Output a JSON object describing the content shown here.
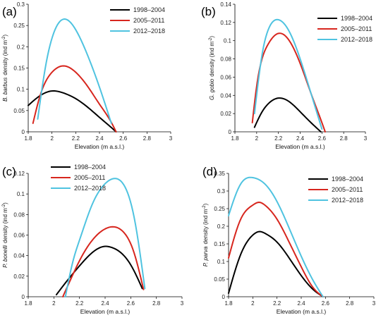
{
  "chart_data": [
    {
      "type": "line",
      "panel_label": "(a)",
      "ylabel_species": "B. barbus",
      "ylabel_rest": "density (ind m",
      "ylabel_sup": "-2",
      "ylabel_close": ")",
      "xlabel": "Elevation (m a.s.l.)",
      "xlim": [
        1.8,
        3
      ],
      "ylim": [
        0,
        0.3
      ],
      "xticks": [
        "1.8",
        "2",
        "2.2",
        "2.4",
        "2.6",
        "2.8",
        "3"
      ],
      "yticks": [
        "0",
        "0.05",
        "0.1",
        "0.15",
        "0.2",
        "0.25",
        "0.3"
      ],
      "legend_position": "top-right",
      "series": [
        {
          "name": "1998–2004",
          "color": "#000000",
          "x": [
            1.8,
            1.9,
            2.0,
            2.1,
            2.2,
            2.3,
            2.4,
            2.5,
            2.54
          ],
          "y": [
            0.062,
            0.085,
            0.096,
            0.091,
            0.078,
            0.058,
            0.034,
            0.01,
            0.0
          ]
        },
        {
          "name": "2005–2011",
          "color": "#d7261e",
          "x": [
            1.84,
            1.9,
            2.0,
            2.1,
            2.2,
            2.3,
            2.4,
            2.5,
            2.54
          ],
          "y": [
            0.02,
            0.085,
            0.14,
            0.155,
            0.14,
            0.107,
            0.065,
            0.022,
            0.0
          ]
        },
        {
          "name": "2012–2018",
          "color": "#4fc3e0",
          "x": [
            1.88,
            1.95,
            2.0,
            2.1,
            2.2,
            2.3,
            2.4,
            2.5
          ],
          "y": [
            0.03,
            0.16,
            0.22,
            0.265,
            0.24,
            0.18,
            0.105,
            0.02
          ]
        }
      ]
    },
    {
      "type": "line",
      "panel_label": "(b)",
      "ylabel_species": "G. gobio",
      "ylabel_rest": "density (ind m",
      "ylabel_sup": "-2",
      "ylabel_close": ")",
      "xlabel": "Elevation (m a.s.l.)",
      "xlim": [
        1.8,
        3
      ],
      "ylim": [
        0,
        0.14
      ],
      "xticks": [
        "1.8",
        "2",
        "2.2",
        "2.4",
        "2.6",
        "2.8",
        "3"
      ],
      "yticks": [
        "0",
        "0.02",
        "0.04",
        "0.06",
        "0.08",
        "0.1",
        "0.12",
        "0.14"
      ],
      "legend_position": "top-right",
      "series": [
        {
          "name": "1998–2004",
          "color": "#000000",
          "x": [
            1.98,
            2.05,
            2.1,
            2.2,
            2.3,
            2.4,
            2.5,
            2.59
          ],
          "y": [
            0.005,
            0.022,
            0.03,
            0.037,
            0.033,
            0.022,
            0.01,
            0.0
          ]
        },
        {
          "name": "2005–2011",
          "color": "#d7261e",
          "x": [
            1.96,
            2.0,
            2.1,
            2.2,
            2.3,
            2.4,
            2.5,
            2.6,
            2.63
          ],
          "y": [
            0.01,
            0.05,
            0.095,
            0.108,
            0.1,
            0.075,
            0.042,
            0.01,
            0.0
          ]
        },
        {
          "name": "2012–2018",
          "color": "#4fc3e0",
          "x": [
            1.98,
            2.05,
            2.1,
            2.2,
            2.3,
            2.4,
            2.5,
            2.6
          ],
          "y": [
            0.02,
            0.085,
            0.11,
            0.123,
            0.11,
            0.08,
            0.042,
            0.003
          ]
        }
      ]
    },
    {
      "type": "line",
      "panel_label": "(c)",
      "ylabel_species": "P. bonelli",
      "ylabel_rest": "density (ind m",
      "ylabel_sup": "-2",
      "ylabel_close": ")",
      "xlabel": "Elevation (m a.s.l.)",
      "xlim": [
        1.8,
        3
      ],
      "ylim": [
        0,
        0.12
      ],
      "xticks": [
        "1.8",
        "2",
        "2.2",
        "2.4",
        "2.6",
        "2.8",
        "3"
      ],
      "yticks": [
        "0",
        "0.02",
        "0.04",
        "0.06",
        "0.08",
        "0.1",
        "0.12"
      ],
      "legend_position": "top-left",
      "series": [
        {
          "name": "1998–2004",
          "color": "#000000",
          "x": [
            2.02,
            2.1,
            2.2,
            2.3,
            2.4,
            2.45,
            2.5,
            2.6,
            2.69
          ],
          "y": [
            0.002,
            0.015,
            0.03,
            0.043,
            0.049,
            0.048,
            0.045,
            0.031,
            0.008
          ]
        },
        {
          "name": "2005–2011",
          "color": "#d7261e",
          "x": [
            2.07,
            2.15,
            2.2,
            2.3,
            2.4,
            2.47,
            2.55,
            2.62,
            2.7
          ],
          "y": [
            0.0,
            0.022,
            0.035,
            0.055,
            0.066,
            0.068,
            0.062,
            0.045,
            0.007
          ]
        },
        {
          "name": "2012–2018",
          "color": "#4fc3e0",
          "x": [
            2.09,
            2.15,
            2.2,
            2.3,
            2.4,
            2.47,
            2.55,
            2.63,
            2.71
          ],
          "y": [
            0.0,
            0.035,
            0.055,
            0.09,
            0.11,
            0.115,
            0.108,
            0.075,
            0.008
          ]
        }
      ]
    },
    {
      "type": "line",
      "panel_label": "(d)",
      "ylabel_species": "P. parva",
      "ylabel_rest": "density (ind m",
      "ylabel_sup": "-2",
      "ylabel_close": ")",
      "xlabel": "Elevation (m a.s.l.)",
      "xlim": [
        1.8,
        3
      ],
      "ylim": [
        0,
        0.35
      ],
      "xticks": [
        "1.8",
        "2",
        "2.2",
        "2.4",
        "2.6",
        "2.8",
        "3"
      ],
      "yticks": [
        "0",
        "0.05",
        "0.1",
        "0.15",
        "0.2",
        "0.25",
        "0.3",
        "0.35"
      ],
      "legend_position": "top-right",
      "series": [
        {
          "name": "1998–2004",
          "color": "#000000",
          "x": [
            1.8,
            1.9,
            2.0,
            2.06,
            2.1,
            2.2,
            2.3,
            2.4,
            2.5,
            2.58
          ],
          "y": [
            0.01,
            0.12,
            0.175,
            0.185,
            0.18,
            0.155,
            0.11,
            0.06,
            0.02,
            0.0
          ]
        },
        {
          "name": "2005–2011",
          "color": "#d7261e",
          "x": [
            1.8,
            1.9,
            2.0,
            2.05,
            2.1,
            2.2,
            2.3,
            2.4,
            2.5,
            2.58
          ],
          "y": [
            0.11,
            0.22,
            0.26,
            0.268,
            0.26,
            0.22,
            0.155,
            0.085,
            0.025,
            0.0
          ]
        },
        {
          "name": "2012–2018",
          "color": "#4fc3e0",
          "x": [
            1.8,
            1.9,
            2.0,
            2.1,
            2.2,
            2.3,
            2.4,
            2.5,
            2.58
          ],
          "y": [
            0.23,
            0.32,
            0.338,
            0.32,
            0.27,
            0.195,
            0.115,
            0.045,
            0.0
          ]
        }
      ]
    }
  ]
}
